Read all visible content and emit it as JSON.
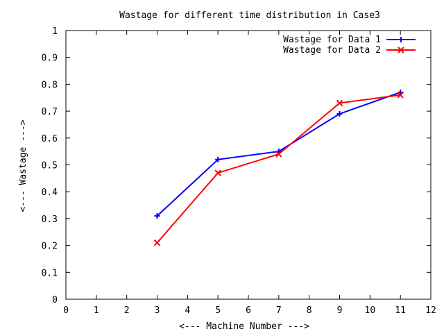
{
  "chart_data": {
    "type": "line",
    "title": "Wastage for different time distribution in Case3",
    "xlabel": "<--- Machine Number --->",
    "ylabel": "<--- Wastage --->",
    "xlim": [
      0,
      12
    ],
    "ylim": [
      0,
      1
    ],
    "x_ticks": [
      0,
      1,
      2,
      3,
      4,
      5,
      6,
      7,
      8,
      9,
      10,
      11,
      12
    ],
    "y_ticks": [
      0,
      0.1,
      0.2,
      0.3,
      0.4,
      0.5,
      0.6,
      0.7,
      0.8,
      0.9,
      1
    ],
    "x_tick_labels": [
      "0",
      "1",
      "2",
      "3",
      "4",
      "5",
      "6",
      "7",
      "8",
      "9",
      "10",
      "11",
      "12"
    ],
    "y_tick_labels": [
      "0",
      "0.1",
      "0.2",
      "0.3",
      "0.4",
      "0.5",
      "0.6",
      "0.7",
      "0.8",
      "0.9",
      "1"
    ],
    "grid": false,
    "legend_position": "top-right",
    "series": [
      {
        "name": "Wastage for Data 1",
        "color": "#0000ff",
        "marker": "plus",
        "x": [
          3,
          5,
          7,
          9,
          11
        ],
        "y": [
          0.31,
          0.52,
          0.55,
          0.69,
          0.77
        ]
      },
      {
        "name": "Wastage for Data 2",
        "color": "#ff0000",
        "marker": "cross",
        "x": [
          3,
          5,
          7,
          9,
          11
        ],
        "y": [
          0.21,
          0.47,
          0.54,
          0.73,
          0.76
        ]
      }
    ]
  }
}
